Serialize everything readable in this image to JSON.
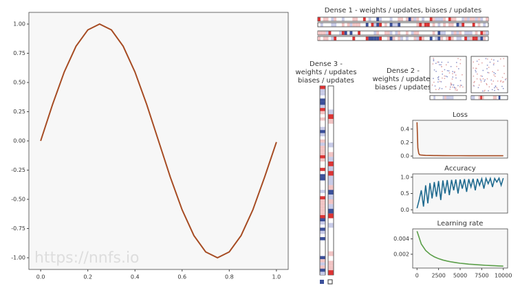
{
  "chart_data": [
    {
      "type": "line",
      "x": [
        0,
        0.05,
        0.1,
        0.15,
        0.2,
        0.25,
        0.3,
        0.35,
        0.4,
        0.45,
        0.5,
        0.55,
        0.6,
        0.65,
        0.7,
        0.75,
        0.8,
        0.85,
        0.9,
        0.95,
        1.0
      ],
      "values": [
        0,
        0.31,
        0.59,
        0.81,
        0.95,
        1.0,
        0.95,
        0.81,
        0.59,
        0.31,
        0,
        -0.31,
        -0.59,
        -0.81,
        -0.95,
        -1.0,
        -0.95,
        -0.81,
        -0.59,
        -0.31,
        -0.01
      ],
      "color": "#a64b22",
      "xlim": [
        -0.05,
        1.05
      ],
      "ylim": [
        -1.1,
        1.1
      ],
      "xticks": [
        {
          "value": 0,
          "label": "0.0"
        },
        0.2,
        0.4,
        0.6,
        0.8,
        {
          "value": 1,
          "label": "1.0"
        }
      ],
      "yticks": [
        {
          "value": 1,
          "label": "1.00"
        },
        0.75,
        {
          "value": 0.5,
          "label": "0.50"
        },
        0.25,
        {
          "value": 0,
          "label": "0.00"
        },
        -0.25,
        {
          "value": -0.5,
          "label": "-0.50"
        },
        -0.75,
        {
          "value": -1,
          "label": "-1.00"
        }
      ]
    },
    {
      "type": "line",
      "title": "Loss",
      "x": [
        0,
        100,
        200,
        300,
        500,
        1000,
        2000,
        3000,
        4000,
        5000,
        6000,
        7000,
        8000,
        9000,
        10000
      ],
      "values": [
        0.5,
        0.12,
        0.04,
        0.02,
        0.015,
        0.01,
        0.008,
        0.007,
        0.006,
        0.006,
        0.005,
        0.005,
        0.005,
        0.005,
        0.005
      ],
      "color": "#a64b22",
      "xlim": [
        -500,
        10500
      ],
      "ylim": [
        -0.03,
        0.53
      ],
      "yticks": [
        {
          "value": 0,
          "label": "0.0"
        },
        0.2,
        0.4
      ]
    },
    {
      "type": "line",
      "title": "Accuracy",
      "x": [
        0,
        250,
        500,
        750,
        1000,
        1250,
        1500,
        1750,
        2000,
        2250,
        2500,
        2750,
        3000,
        3250,
        3500,
        3750,
        4000,
        4250,
        4500,
        4750,
        5000,
        5250,
        5500,
        5750,
        6000,
        6250,
        6500,
        6750,
        7000,
        7250,
        7500,
        7750,
        8000,
        8250,
        8500,
        8750,
        9000,
        9250,
        9500,
        9750,
        10000
      ],
      "values": [
        0.05,
        0.3,
        0.6,
        0.1,
        0.75,
        0.2,
        0.82,
        0.35,
        0.85,
        0.4,
        0.88,
        0.3,
        0.9,
        0.5,
        0.91,
        0.45,
        0.92,
        0.6,
        0.93,
        0.5,
        0.93,
        0.65,
        0.94,
        0.55,
        0.94,
        0.7,
        0.95,
        0.6,
        0.95,
        0.75,
        0.95,
        0.65,
        0.96,
        0.8,
        0.96,
        0.7,
        0.96,
        0.85,
        0.97,
        0.75,
        0.97
      ],
      "color": "#1f6a8f",
      "xlim": [
        -500,
        10500
      ],
      "ylim": [
        -0.1,
        1.1
      ],
      "yticks": [
        {
          "value": 0,
          "label": "0.0"
        },
        0.5,
        {
          "value": 1,
          "label": "1.0"
        }
      ]
    },
    {
      "type": "line",
      "title": "Learning rate",
      "x": [
        0,
        500,
        1000,
        1500,
        2000,
        2500,
        3000,
        3500,
        4000,
        4500,
        5000,
        5500,
        6000,
        6500,
        7000,
        7500,
        8000,
        8500,
        9000,
        9500,
        10000
      ],
      "values": [
        0.005,
        0.00333,
        0.0025,
        0.002,
        0.00167,
        0.00143,
        0.00125,
        0.00111,
        0.001,
        0.00091,
        0.00083,
        0.00077,
        0.00071,
        0.00067,
        0.00063,
        0.00059,
        0.00056,
        0.00053,
        0.0005,
        0.00048,
        0.00045
      ],
      "color": "#5a9e48",
      "xlim": [
        -500,
        10500
      ],
      "ylim": [
        0.0002,
        0.0053
      ],
      "xticks": [
        0,
        2500,
        5000,
        7500,
        10000
      ],
      "yticks": [
        0.002,
        0.004
      ]
    }
  ],
  "panels": {
    "dense1": "Dense 1 - weights / updates, biases / updates",
    "dense2": [
      "Dense 2 -",
      "weights / updates",
      "biases / updates"
    ],
    "dense3": [
      "Dense 3 -",
      "weights / updates",
      "biases / updates"
    ]
  },
  "watermark": "https://nnfs.io"
}
